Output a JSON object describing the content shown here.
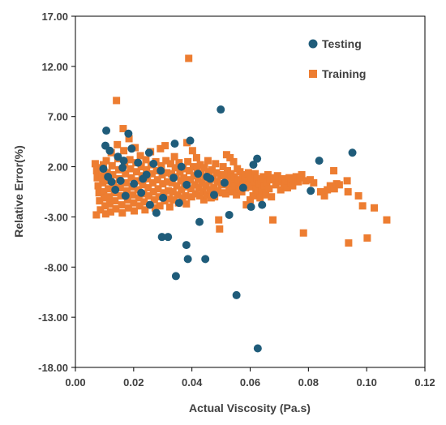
{
  "chart_data": {
    "type": "scatter",
    "title": "",
    "xlabel": "Actual Viscosity (Pa.s)",
    "ylabel": "Relative Error(%)",
    "xlim": [
      0,
      0.12
    ],
    "ylim": [
      -18,
      17
    ],
    "x_ticks": [
      "0.00",
      "0.02",
      "0.04",
      "0.06",
      "0.08",
      "0.10",
      "0.12"
    ],
    "y_ticks": [
      "-18.00",
      "-13.00",
      "-8.00",
      "-3.00",
      "2.00",
      "7.00",
      "12.00",
      "17.00"
    ],
    "grid": false,
    "legend_position": "top-right",
    "series": [
      {
        "name": "Testing",
        "marker": "circle",
        "color": "#1f5c7a",
        "points": [
          [
            0.0106,
            5.6
          ],
          [
            0.0103,
            4.1
          ],
          [
            0.0118,
            3.6
          ],
          [
            0.0146,
            3.0
          ],
          [
            0.0166,
            2.6
          ],
          [
            0.0182,
            5.3
          ],
          [
            0.0193,
            3.8
          ],
          [
            0.0215,
            2.4
          ],
          [
            0.0253,
            3.4
          ],
          [
            0.0268,
            2.3
          ],
          [
            0.0096,
            1.8
          ],
          [
            0.0112,
            1.0
          ],
          [
            0.0124,
            0.5
          ],
          [
            0.0137,
            -0.3
          ],
          [
            0.0155,
            0.6
          ],
          [
            0.0172,
            -0.9
          ],
          [
            0.0201,
            0.3
          ],
          [
            0.0226,
            -0.6
          ],
          [
            0.0244,
            1.2
          ],
          [
            0.0256,
            -1.8
          ],
          [
            0.0278,
            -2.6
          ],
          [
            0.0293,
            1.6
          ],
          [
            0.0301,
            -1.1
          ],
          [
            0.0297,
            -5.0
          ],
          [
            0.0318,
            -5.0
          ],
          [
            0.0341,
            4.3
          ],
          [
            0.0337,
            0.9
          ],
          [
            0.0356,
            -1.6
          ],
          [
            0.0364,
            2.0
          ],
          [
            0.0381,
            -5.8
          ],
          [
            0.0386,
            -7.2
          ],
          [
            0.0394,
            4.6
          ],
          [
            0.0345,
            -8.9
          ],
          [
            0.0421,
            1.3
          ],
          [
            0.0426,
            -3.5
          ],
          [
            0.0446,
            -7.2
          ],
          [
            0.0463,
            0.8
          ],
          [
            0.0476,
            -0.8
          ],
          [
            0.0499,
            7.7
          ],
          [
            0.0512,
            0.4
          ],
          [
            0.0528,
            -2.8
          ],
          [
            0.0553,
            -10.8
          ],
          [
            0.0576,
            -0.1
          ],
          [
            0.0603,
            -2.0
          ],
          [
            0.0611,
            2.2
          ],
          [
            0.0624,
            2.8
          ],
          [
            0.0641,
            -1.8
          ],
          [
            0.0626,
            -16.1
          ],
          [
            0.0808,
            -0.4
          ],
          [
            0.0837,
            2.6
          ],
          [
            0.0951,
            3.4
          ],
          [
            0.0382,
            0.2
          ],
          [
            0.0232,
            0.8
          ],
          [
            0.0162,
            1.9
          ],
          [
            0.0452,
            1.0
          ]
        ]
      },
      {
        "name": "Training",
        "marker": "square",
        "color": "#ed7d31",
        "points": [
          [
            0.0068,
            2.3
          ],
          [
            0.0073,
            1.6
          ],
          [
            0.0075,
            0.9
          ],
          [
            0.0078,
            0.1
          ],
          [
            0.0081,
            -0.6
          ],
          [
            0.0083,
            -1.4
          ],
          [
            0.0086,
            -2.3
          ],
          [
            0.0072,
            -2.8
          ],
          [
            0.0088,
            1.9
          ],
          [
            0.0091,
            1.1
          ],
          [
            0.0094,
            0.4
          ],
          [
            0.0097,
            -0.5
          ],
          [
            0.0099,
            -1.1
          ],
          [
            0.0102,
            -1.9
          ],
          [
            0.0104,
            -2.7
          ],
          [
            0.0106,
            2.6
          ],
          [
            0.0109,
            1.4
          ],
          [
            0.0111,
            0.6
          ],
          [
            0.0113,
            -0.2
          ],
          [
            0.0116,
            -1.0
          ],
          [
            0.0118,
            -1.7
          ],
          [
            0.0121,
            -2.5
          ],
          [
            0.0123,
            3.4
          ],
          [
            0.0126,
            2.1
          ],
          [
            0.0128,
            1.2
          ],
          [
            0.0131,
            0.3
          ],
          [
            0.0134,
            -0.6
          ],
          [
            0.0136,
            -1.4
          ],
          [
            0.0139,
            -2.2
          ],
          [
            0.0141,
            8.6
          ],
          [
            0.0144,
            4.2
          ],
          [
            0.0146,
            2.8
          ],
          [
            0.0149,
            1.7
          ],
          [
            0.0151,
            0.8
          ],
          [
            0.0154,
            -0.1
          ],
          [
            0.0156,
            -0.9
          ],
          [
            0.0159,
            -1.8
          ],
          [
            0.0161,
            -2.6
          ],
          [
            0.0164,
            5.8
          ],
          [
            0.0166,
            3.6
          ],
          [
            0.0169,
            2.3
          ],
          [
            0.0172,
            1.3
          ],
          [
            0.0174,
            0.4
          ],
          [
            0.0177,
            -0.4
          ],
          [
            0.0179,
            -1.3
          ],
          [
            0.0182,
            -2.1
          ],
          [
            0.0184,
            4.8
          ],
          [
            0.0187,
            2.7
          ],
          [
            0.0189,
            1.8
          ],
          [
            0.0192,
            0.9
          ],
          [
            0.0195,
            0.0
          ],
          [
            0.0197,
            -0.8
          ],
          [
            0.02,
            -1.6
          ],
          [
            0.0202,
            -2.4
          ],
          [
            0.0205,
            3.9
          ],
          [
            0.0208,
            2.4
          ],
          [
            0.021,
            1.5
          ],
          [
            0.0213,
            0.6
          ],
          [
            0.0215,
            -0.3
          ],
          [
            0.0218,
            -1.1
          ],
          [
            0.0221,
            -1.9
          ],
          [
            0.0223,
            3.1
          ],
          [
            0.0226,
            2.0
          ],
          [
            0.0229,
            1.1
          ],
          [
            0.0231,
            0.2
          ],
          [
            0.0234,
            -0.7
          ],
          [
            0.0236,
            -1.5
          ],
          [
            0.0239,
            -2.3
          ],
          [
            0.0242,
            2.7
          ],
          [
            0.0244,
            1.7
          ],
          [
            0.0247,
            0.8
          ],
          [
            0.025,
            -0.1
          ],
          [
            0.0252,
            -0.9
          ],
          [
            0.0255,
            -1.8
          ],
          [
            0.0258,
            3.5
          ],
          [
            0.026,
            2.2
          ],
          [
            0.0263,
            1.3
          ],
          [
            0.0266,
            0.4
          ],
          [
            0.0268,
            -0.5
          ],
          [
            0.0271,
            -1.3
          ],
          [
            0.0274,
            -2.1
          ],
          [
            0.0276,
            2.5
          ],
          [
            0.0279,
            1.6
          ],
          [
            0.0282,
            0.7
          ],
          [
            0.0284,
            -0.2
          ],
          [
            0.0287,
            -1.0
          ],
          [
            0.029,
            -1.9
          ],
          [
            0.0292,
            3.8
          ],
          [
            0.0295,
            2.1
          ],
          [
            0.0298,
            1.2
          ],
          [
            0.03,
            0.3
          ],
          [
            0.0303,
            -0.6
          ],
          [
            0.0306,
            -1.4
          ],
          [
            0.0308,
            4.1
          ],
          [
            0.0311,
            2.6
          ],
          [
            0.0314,
            1.4
          ],
          [
            0.0316,
            0.5
          ],
          [
            0.0319,
            -0.4
          ],
          [
            0.0322,
            -1.2
          ],
          [
            0.0324,
            -2.0
          ],
          [
            0.0327,
            2.3
          ],
          [
            0.033,
            1.3
          ],
          [
            0.0332,
            0.4
          ],
          [
            0.0335,
            -0.5
          ],
          [
            0.0338,
            -1.3
          ],
          [
            0.034,
            3.0
          ],
          [
            0.0343,
            1.9
          ],
          [
            0.0346,
            1.0
          ],
          [
            0.0348,
            0.1
          ],
          [
            0.0351,
            -0.8
          ],
          [
            0.0354,
            -1.6
          ],
          [
            0.0356,
            2.4
          ],
          [
            0.0359,
            1.5
          ],
          [
            0.0362,
            0.6
          ],
          [
            0.0364,
            -0.3
          ],
          [
            0.0367,
            -1.1
          ],
          [
            0.037,
            1.8
          ],
          [
            0.0372,
            0.9
          ],
          [
            0.0375,
            0.0
          ],
          [
            0.0378,
            -0.9
          ],
          [
            0.0381,
            -1.7
          ],
          [
            0.0383,
            4.4
          ],
          [
            0.0386,
            2.5
          ],
          [
            0.0389,
            12.8
          ],
          [
            0.0391,
            1.6
          ],
          [
            0.0394,
            0.7
          ],
          [
            0.0397,
            -0.2
          ],
          [
            0.0399,
            -1.0
          ],
          [
            0.0402,
            3.6
          ],
          [
            0.0405,
            2.0
          ],
          [
            0.0407,
            1.1
          ],
          [
            0.041,
            0.2
          ],
          [
            0.0413,
            -0.7
          ],
          [
            0.0416,
            2.9
          ],
          [
            0.0418,
            1.7
          ],
          [
            0.0421,
            0.8
          ],
          [
            0.0424,
            -0.1
          ],
          [
            0.0427,
            -0.9
          ],
          [
            0.0429,
            2.2
          ],
          [
            0.0432,
            1.3
          ],
          [
            0.0435,
            0.4
          ],
          [
            0.0438,
            -0.5
          ],
          [
            0.0441,
            -1.3
          ],
          [
            0.0443,
            1.9
          ],
          [
            0.0446,
            1.0
          ],
          [
            0.0449,
            0.1
          ],
          [
            0.0452,
            -0.8
          ],
          [
            0.0455,
            2.6
          ],
          [
            0.0458,
            1.5
          ],
          [
            0.046,
            0.6
          ],
          [
            0.0463,
            -0.3
          ],
          [
            0.0466,
            -1.1
          ],
          [
            0.0469,
            1.7
          ],
          [
            0.0472,
            0.8
          ],
          [
            0.0475,
            -0.1
          ],
          [
            0.0478,
            -1.0
          ],
          [
            0.0481,
            2.3
          ],
          [
            0.0484,
            1.4
          ],
          [
            0.0487,
            0.5
          ],
          [
            0.0489,
            -0.4
          ],
          [
            0.0492,
            -3.3
          ],
          [
            0.0495,
            -4.2
          ],
          [
            0.0498,
            1.2
          ],
          [
            0.0501,
            0.3
          ],
          [
            0.0504,
            -0.6
          ],
          [
            0.0507,
            2.0
          ],
          [
            0.051,
            1.1
          ],
          [
            0.0513,
            0.2
          ],
          [
            0.0516,
            -0.7
          ],
          [
            0.0519,
            3.2
          ],
          [
            0.0522,
            1.6
          ],
          [
            0.0525,
            0.7
          ],
          [
            0.0528,
            -0.2
          ],
          [
            0.0531,
            2.9
          ],
          [
            0.0534,
            1.3
          ],
          [
            0.0537,
            0.4
          ],
          [
            0.054,
            -0.5
          ],
          [
            0.0543,
            2.5
          ],
          [
            0.0546,
            1.0
          ],
          [
            0.0549,
            0.1
          ],
          [
            0.0553,
            -0.8
          ],
          [
            0.0556,
            1.8
          ],
          [
            0.0559,
            0.7
          ],
          [
            0.0562,
            -0.2
          ],
          [
            0.0565,
            1.5
          ],
          [
            0.0568,
            0.4
          ],
          [
            0.0571,
            -0.5
          ],
          [
            0.0574,
            1.2
          ],
          [
            0.0577,
            0.2
          ],
          [
            0.0581,
            0.9
          ],
          [
            0.0584,
            -0.1
          ],
          [
            0.0587,
            -1.8
          ],
          [
            0.059,
            0.6
          ],
          [
            0.0594,
            1.4
          ],
          [
            0.0597,
            0.3
          ],
          [
            0.06,
            -1.3
          ],
          [
            0.0604,
            0.9
          ],
          [
            0.0607,
            0.0
          ],
          [
            0.061,
            -0.9
          ],
          [
            0.0614,
            0.5
          ],
          [
            0.0617,
            1.3
          ],
          [
            0.062,
            -0.3
          ],
          [
            0.0624,
            0.8
          ],
          [
            0.0627,
            -0.6
          ],
          [
            0.0631,
            0.3
          ],
          [
            0.0634,
            -1.1
          ],
          [
            0.0638,
            0.6
          ],
          [
            0.0641,
            -0.4
          ],
          [
            0.0645,
            1.0
          ],
          [
            0.0649,
            0.1
          ],
          [
            0.0653,
            -0.8
          ],
          [
            0.0657,
            0.4
          ],
          [
            0.0661,
            1.2
          ],
          [
            0.0665,
            -0.2
          ],
          [
            0.0669,
            0.7
          ],
          [
            0.0673,
            -1.0
          ],
          [
            0.0678,
            -3.3
          ],
          [
            0.0683,
            0.9
          ],
          [
            0.0688,
            0.2
          ],
          [
            0.0694,
            1.1
          ],
          [
            0.07,
            0.5
          ],
          [
            0.0705,
            -0.3
          ],
          [
            0.0711,
            0.8
          ],
          [
            0.0716,
            0.1
          ],
          [
            0.0722,
            0.6
          ],
          [
            0.0728,
            -0.1
          ],
          [
            0.0734,
            0.9
          ],
          [
            0.074,
            0.4
          ],
          [
            0.0746,
            0.1
          ],
          [
            0.0752,
            0.7
          ],
          [
            0.0758,
            1.0
          ],
          [
            0.0765,
            0.5
          ],
          [
            0.0771,
            0.9
          ],
          [
            0.0777,
            1.2
          ],
          [
            0.0783,
            -4.6
          ],
          [
            0.0791,
            0.6
          ],
          [
            0.0842,
            -0.5
          ],
          [
            0.0855,
            -0.9
          ],
          [
            0.0865,
            -0.3
          ],
          [
            0.0875,
            0.1
          ],
          [
            0.0889,
            -0.2
          ],
          [
            0.0897,
            0.3
          ],
          [
            0.0887,
            1.6
          ],
          [
            0.0936,
            -0.5
          ],
          [
            0.0938,
            -5.6
          ],
          [
            0.0972,
            -0.9
          ],
          [
            0.0986,
            -1.9
          ],
          [
            0.1002,
            -5.1
          ],
          [
            0.1026,
            -2.1
          ],
          [
            0.1069,
            -3.3
          ],
          [
            0.0933,
            0.6
          ],
          [
            0.0818,
            0.4
          ],
          [
            0.0806,
            0.7
          ],
          [
            0.0906,
            0.2
          ],
          [
            0.0096,
            2.2
          ]
        ]
      }
    ]
  }
}
